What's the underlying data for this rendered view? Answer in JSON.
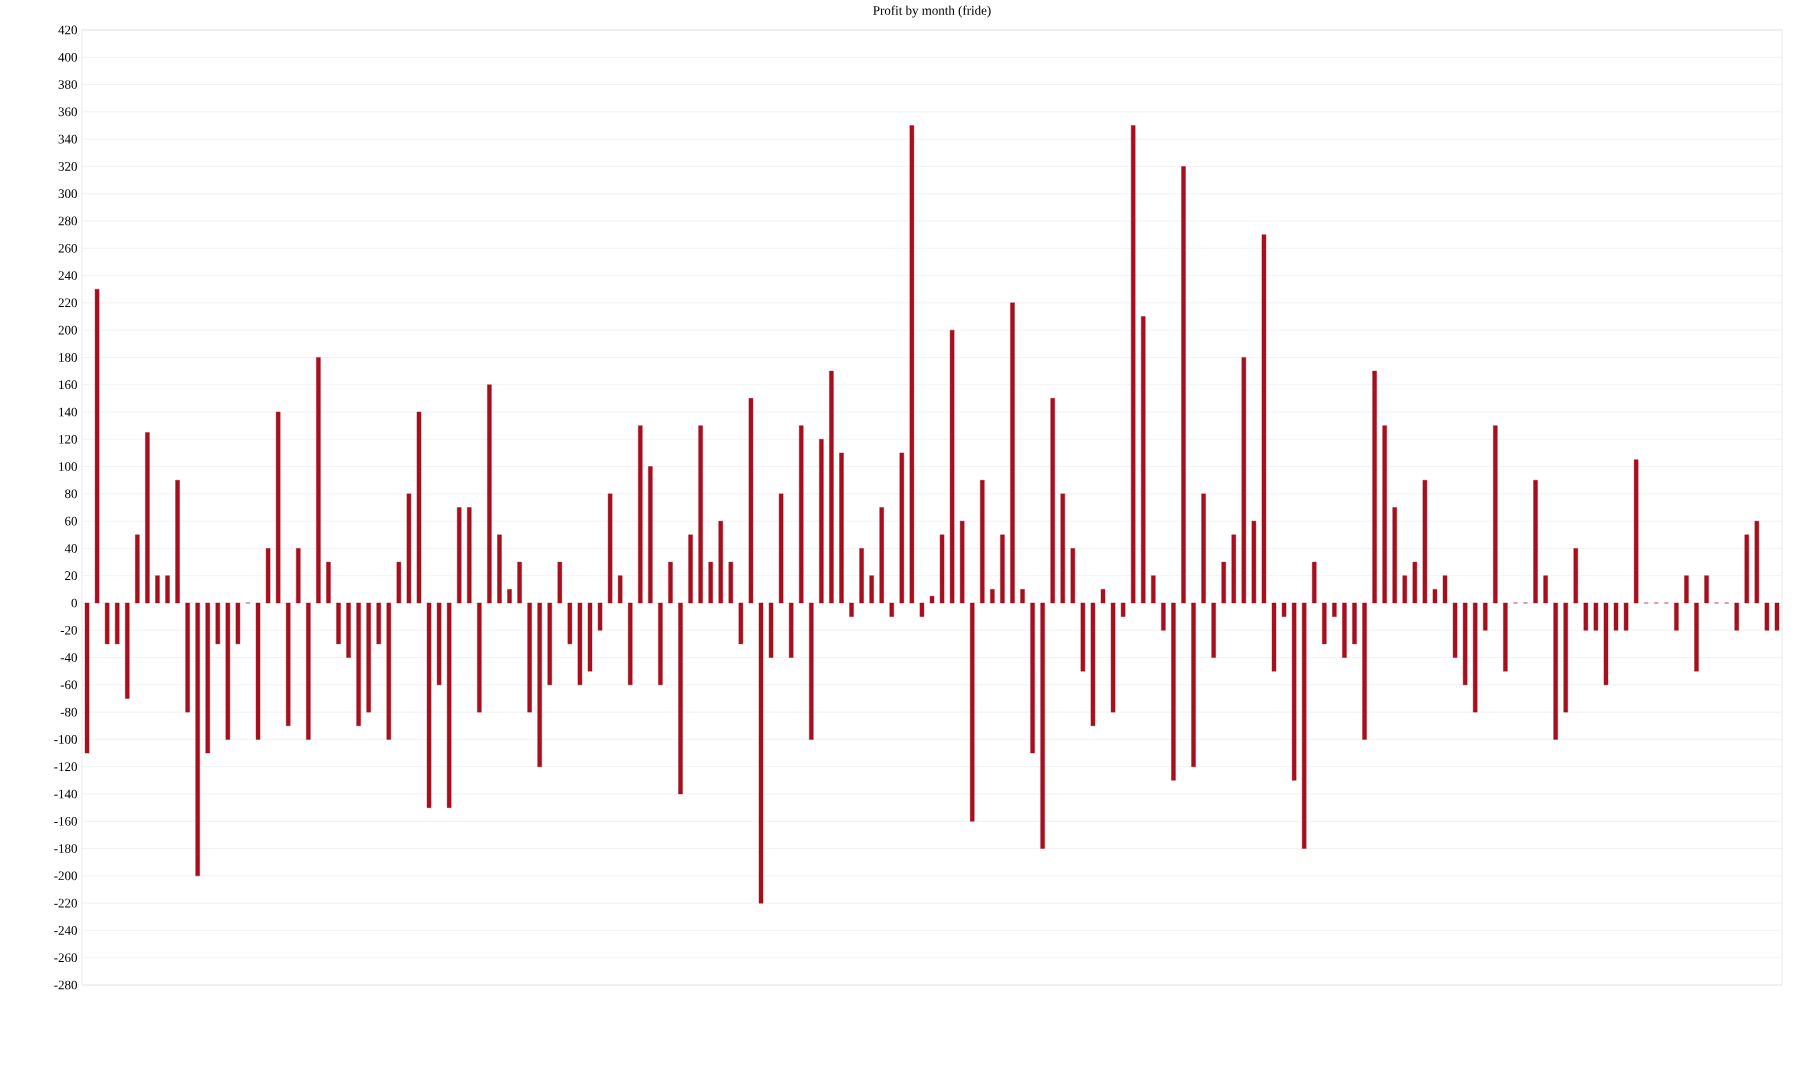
{
  "chart_data": {
    "type": "bar",
    "title": "Profit by month  (fride)",
    "categories": [
      null,
      null,
      null,
      null,
      null,
      null,
      null,
      null,
      null,
      null,
      null,
      null,
      null,
      null,
      null,
      null,
      null,
      null,
      null,
      null,
      null,
      null,
      null,
      null,
      null,
      null,
      null,
      null,
      null,
      null,
      null,
      null,
      null,
      null,
      null,
      null,
      null,
      null,
      null,
      null,
      null,
      null,
      null,
      null,
      null,
      null,
      null,
      null,
      null,
      null,
      null,
      null,
      null,
      null,
      null,
      null,
      null,
      null,
      null,
      null,
      null,
      null,
      null,
      null,
      null,
      null,
      null,
      null,
      null,
      null,
      null,
      null,
      null,
      null,
      null,
      null,
      null,
      null,
      null,
      null,
      null,
      null,
      null,
      null,
      null,
      null,
      null,
      null,
      null,
      null,
      null,
      null,
      null,
      null,
      null,
      null,
      null,
      null,
      null,
      null,
      null,
      null,
      null,
      null,
      null,
      null,
      null,
      null,
      null,
      null,
      null,
      null,
      null,
      null,
      null,
      null,
      null,
      null,
      null,
      null,
      null,
      null,
      null,
      null,
      null,
      null,
      null,
      null,
      null,
      null,
      null,
      null,
      null,
      null,
      null,
      null,
      null,
      null,
      null,
      null,
      null,
      null,
      null,
      null,
      null,
      null,
      null,
      null,
      null,
      null,
      null,
      null,
      null,
      null,
      null,
      null,
      null,
      null,
      null,
      null,
      null,
      null,
      null,
      null,
      null,
      null,
      null,
      null,
      null
    ],
    "values": [
      -110,
      230,
      -30,
      -30,
      -70,
      50,
      125,
      20,
      20,
      90,
      -80,
      -200,
      -110,
      -30,
      -100,
      -30,
      0,
      -100,
      40,
      140,
      -90,
      40,
      -100,
      180,
      30,
      -30,
      -40,
      -90,
      -80,
      -30,
      -100,
      30,
      80,
      140,
      -150,
      -60,
      -150,
      70,
      70,
      -80,
      160,
      50,
      10,
      30,
      -80,
      -120,
      -60,
      30,
      -30,
      -60,
      -50,
      -20,
      80,
      20,
      -60,
      130,
      100,
      -60,
      30,
      -140,
      50,
      130,
      30,
      60,
      30,
      -30,
      150,
      -220,
      -40,
      80,
      -40,
      130,
      -100,
      120,
      170,
      110,
      -10,
      40,
      20,
      70,
      -10,
      110,
      350,
      -10,
      5,
      50,
      200,
      60,
      -160,
      90,
      10,
      50,
      220,
      10,
      -110,
      -180,
      150,
      80,
      40,
      -50,
      -90,
      10,
      -80,
      -10,
      350,
      210,
      20,
      -20,
      -130,
      320,
      -120,
      80,
      -40,
      30,
      50,
      180,
      60,
      270,
      -50,
      -10,
      -130,
      -180,
      30,
      -30,
      -10,
      -40,
      -30,
      -100,
      170,
      130,
      70,
      20,
      30,
      90,
      10,
      20,
      -40,
      -60,
      -80,
      -20,
      130,
      -50,
      0,
      0,
      90,
      20,
      -100,
      -80,
      40,
      -20,
      -20,
      -60,
      -20,
      -20,
      105,
      0,
      0,
      0,
      -20,
      20,
      -50,
      20,
      0,
      0,
      -20,
      50,
      60,
      -20,
      -20
    ],
    "color": "#a50f1e",
    "ylim": [
      -280,
      420
    ],
    "yticks": [
      -280,
      -260,
      -240,
      -220,
      -200,
      -180,
      -160,
      -140,
      -120,
      -100,
      -80,
      -60,
      -40,
      -20,
      0,
      20,
      40,
      60,
      80,
      100,
      120,
      140,
      160,
      180,
      200,
      220,
      240,
      260,
      280,
      300,
      320,
      340,
      360,
      380,
      400,
      420
    ],
    "grid": "y"
  }
}
